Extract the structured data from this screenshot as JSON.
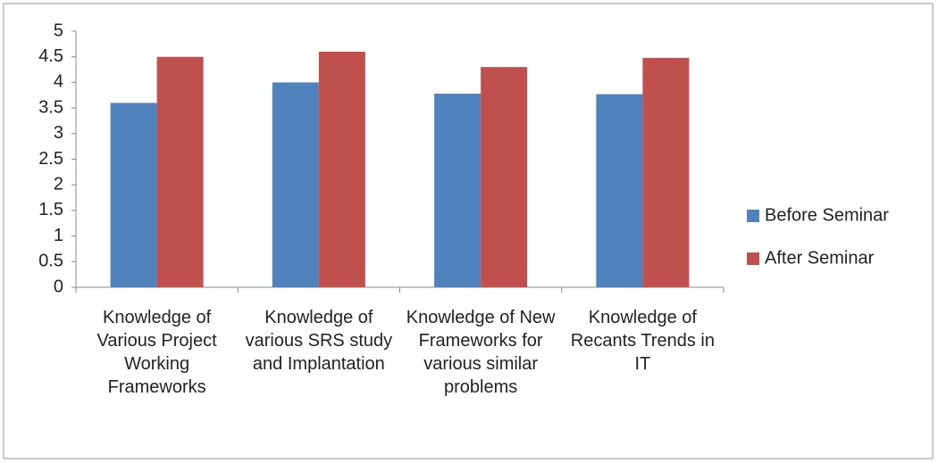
{
  "chart_data": {
    "type": "bar",
    "categories": [
      "Knowledge of Various Project Working Frameworks",
      "Knowledge of various SRS study and Implantation",
      "Knowledge of New Frameworks for various similar problems",
      "Knowledge of Recants Trends in IT"
    ],
    "series": [
      {
        "name": "Before Seminar",
        "color": "#4f81bd",
        "values": [
          3.6,
          4.0,
          3.78,
          3.77
        ]
      },
      {
        "name": "After Seminar",
        "color": "#c0504d",
        "values": [
          4.5,
          4.6,
          4.3,
          4.48
        ]
      }
    ],
    "ylim": [
      0,
      5
    ],
    "yticks": [
      0,
      0.5,
      1,
      1.5,
      2,
      2.5,
      3,
      3.5,
      4,
      4.5,
      5
    ],
    "grid": false,
    "legend": "right"
  }
}
